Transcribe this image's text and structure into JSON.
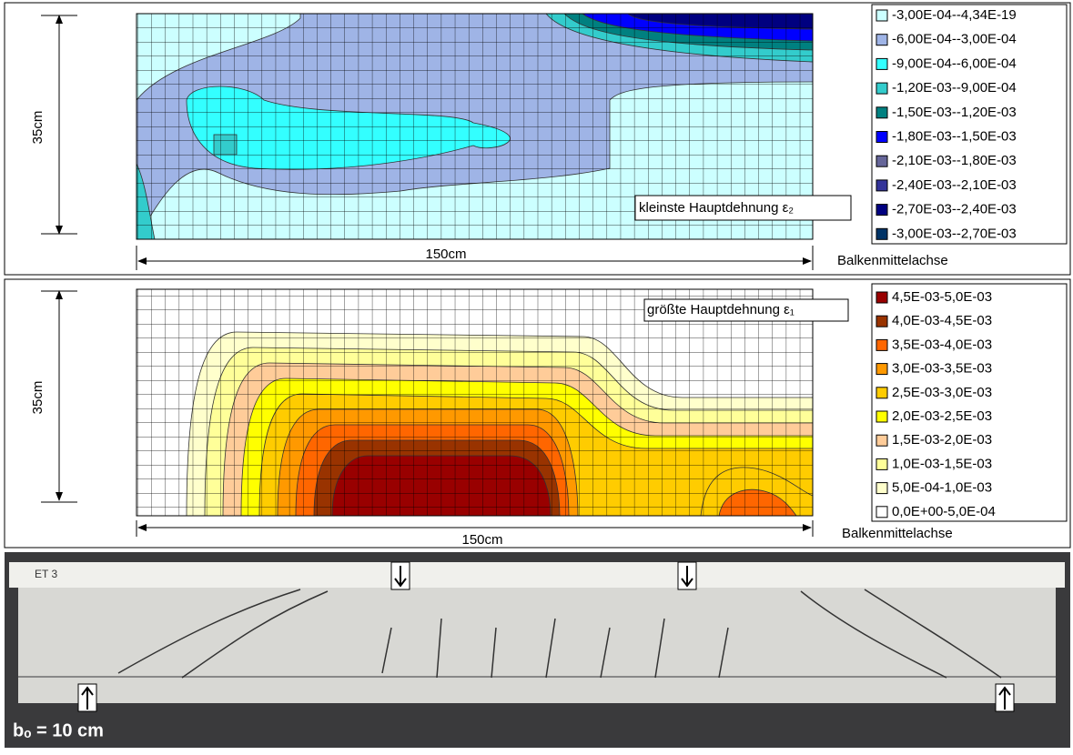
{
  "panels": [
    {
      "annotation": "kleinste Hauptdehnung ε₂",
      "height_label": "35cm",
      "length_label": "150cm",
      "axis_label": "Balkenmittelachse",
      "legend": [
        {
          "label": "-3,00E-04--4,34E-19",
          "color": "#ccffff"
        },
        {
          "label": "-6,00E-04--3,00E-04",
          "color": "#9fb4e6"
        },
        {
          "label": "-9,00E-04--6,00E-04",
          "color": "#33ffff"
        },
        {
          "label": "-1,20E-03--9,00E-04",
          "color": "#33cccc"
        },
        {
          "label": "-1,50E-03--1,20E-03",
          "color": "#008080"
        },
        {
          "label": "-1,80E-03--1,50E-03",
          "color": "#0000ff"
        },
        {
          "label": "-2,10E-03--1,80E-03",
          "color": "#666699"
        },
        {
          "label": "-2,40E-03--2,10E-03",
          "color": "#333399"
        },
        {
          "label": "-2,70E-03--2,40E-03",
          "color": "#000080"
        },
        {
          "label": "-3,00E-03--2,70E-03",
          "color": "#003366"
        }
      ]
    },
    {
      "annotation": "größte Hauptdehnung ε₁",
      "height_label": "35cm",
      "length_label": "150cm",
      "axis_label": "Balkenmittelachse",
      "legend": [
        {
          "label": "4,5E-03-5,0E-03",
          "color": "#990000"
        },
        {
          "label": "4,0E-03-4,5E-03",
          "color": "#993300"
        },
        {
          "label": "3,5E-03-4,0E-03",
          "color": "#ff6600"
        },
        {
          "label": "3,0E-03-3,5E-03",
          "color": "#ff9900"
        },
        {
          "label": "2,5E-03-3,0E-03",
          "color": "#ffcc00"
        },
        {
          "label": "2,0E-03-2,5E-03",
          "color": "#ffff00"
        },
        {
          "label": "1,5E-03-2,0E-03",
          "color": "#ffcc99"
        },
        {
          "label": "1,0E-03-1,5E-03",
          "color": "#ffff99"
        },
        {
          "label": "5,0E-04-1,0E-03",
          "color": "#ffffcc"
        },
        {
          "label": "0,0E+00-5,0E-04",
          "color": "#ffffff"
        }
      ]
    }
  ],
  "photo": {
    "specimen": "ET 3",
    "width_label": "bₒ = 10 cm"
  }
}
